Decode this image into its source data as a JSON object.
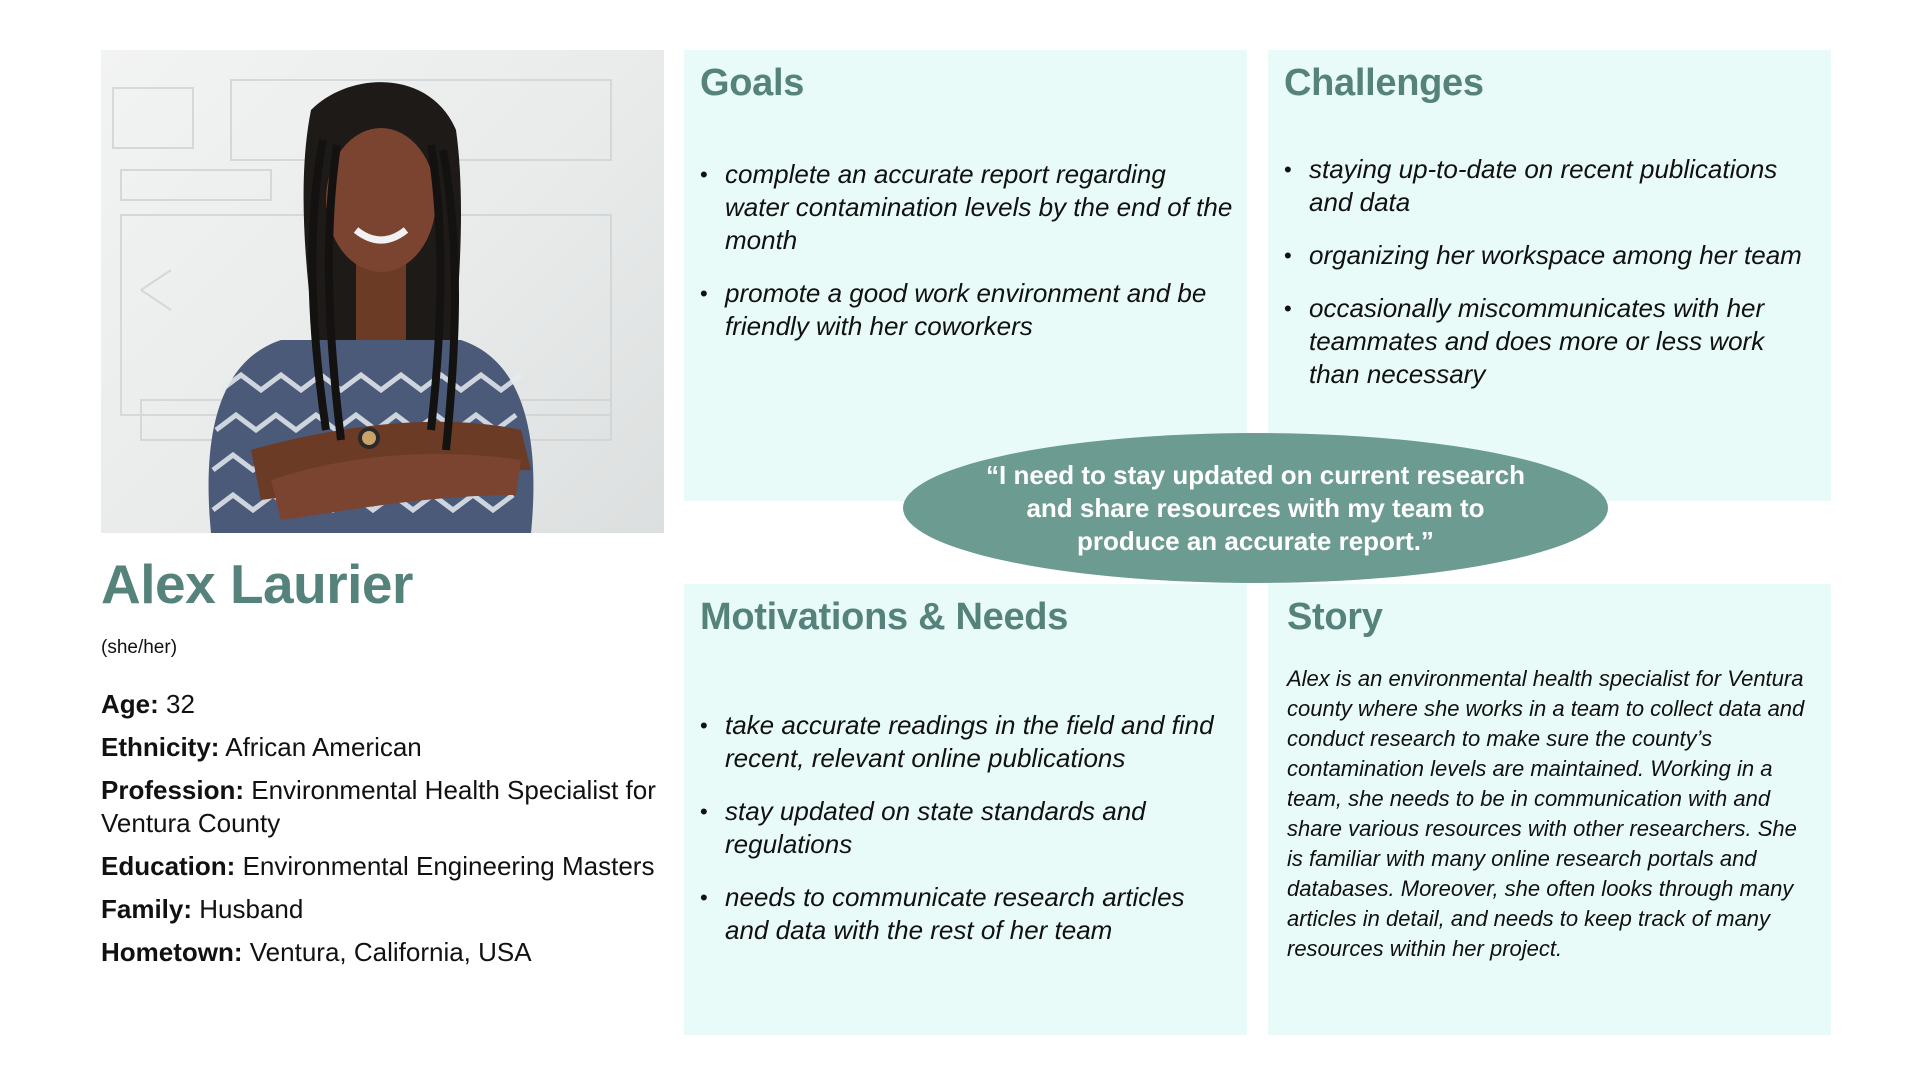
{
  "persona": {
    "name": "Alex Laurier",
    "pronouns": "(she/her)",
    "facts": [
      {
        "label": "Age:",
        "value": " 32"
      },
      {
        "label": "Ethnicity:",
        "value": " African American"
      },
      {
        "label": "Profession:",
        "value": " Environmental Health Specialist for Ventura County"
      },
      {
        "label": "Education:",
        "value": " Environmental Engineering Masters"
      },
      {
        "label": "Family:",
        "value": " Husband"
      },
      {
        "label": "Hometown:",
        "value": " Ventura, California, USA"
      }
    ]
  },
  "goals": {
    "title": "Goals",
    "items": [
      "complete an accurate report regarding water contamination levels by the end of the month",
      "promote a good work environment and be friendly with her coworkers"
    ]
  },
  "challenges": {
    "title": "Challenges",
    "items": [
      "staying up-to-date on recent publications and data",
      "organizing her workspace among her team",
      "occasionally miscommunicates with her teammates and does more or less work than necessary"
    ]
  },
  "quote": "“I need to stay updated on current research and share resources with my team to produce an accurate report.”",
  "motivations": {
    "title": "Motivations & Needs",
    "items": [
      "take accurate readings in the field and find recent, relevant online publications",
      "stay updated on state standards and regulations",
      "needs to communicate research articles and data with the rest of her team"
    ]
  },
  "story": {
    "title": "Story",
    "text": "Alex is an environmental health specialist for Ventura county where she works in a team to collect data and conduct research to make sure the county’s contamination levels are maintained. Working in a team, she needs to be in communication with and share various resources with other researchers. She is familiar with many online research portals and databases. Moreover, she often looks through many articles in detail, and needs to keep track of many resources within her project."
  },
  "colors": {
    "accent": "#55837b",
    "card_bg": "#e8fbf8",
    "quote_bg": "#6b9b91"
  },
  "photo": {
    "icon": "persona-portrait-image"
  }
}
